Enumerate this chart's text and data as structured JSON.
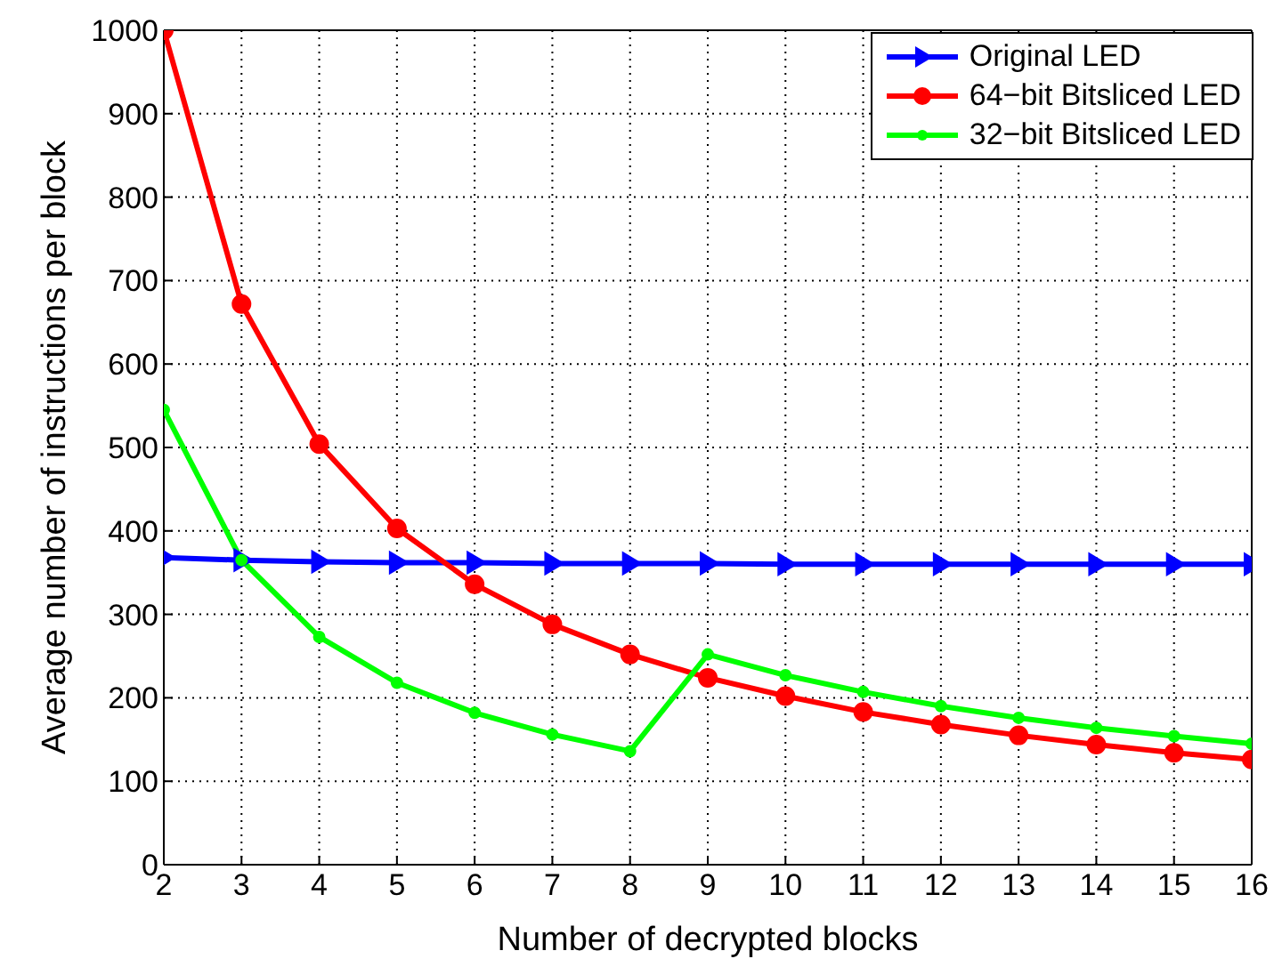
{
  "chart_data": {
    "type": "line",
    "xlabel": "Number of decrypted blocks",
    "ylabel": "Average number of instructions per block",
    "x": [
      2,
      3,
      4,
      5,
      6,
      7,
      8,
      9,
      10,
      11,
      12,
      13,
      14,
      15,
      16
    ],
    "xlim": [
      2,
      16
    ],
    "xticks": [
      2,
      3,
      4,
      5,
      6,
      7,
      8,
      9,
      10,
      11,
      12,
      13,
      14,
      15,
      16
    ],
    "ylim": [
      0,
      1000
    ],
    "yticks": [
      0,
      100,
      200,
      300,
      400,
      500,
      600,
      700,
      800,
      900,
      1000
    ],
    "grid": true,
    "legend": "top right",
    "line_style": "solid",
    "series": [
      {
        "name": "Original LED",
        "color": "#0000ff",
        "marker": "triangle",
        "values": [
          368,
          365,
          363,
          362,
          362,
          361,
          361,
          361,
          360,
          360,
          360,
          360,
          360,
          360,
          360
        ]
      },
      {
        "name": "64−bit Bitsliced LED",
        "color": "#ff0000",
        "marker": "circle",
        "values": [
          1000,
          672,
          504,
          403,
          336,
          288,
          252,
          224,
          202,
          183,
          168,
          155,
          144,
          134,
          126
        ]
      },
      {
        "name": "32−bit Bitsliced LED",
        "color": "#00ff00",
        "marker": "circle",
        "values": [
          545,
          365,
          273,
          218,
          182,
          156,
          136,
          252,
          227,
          207,
          190,
          176,
          164,
          154,
          145
        ]
      }
    ]
  }
}
